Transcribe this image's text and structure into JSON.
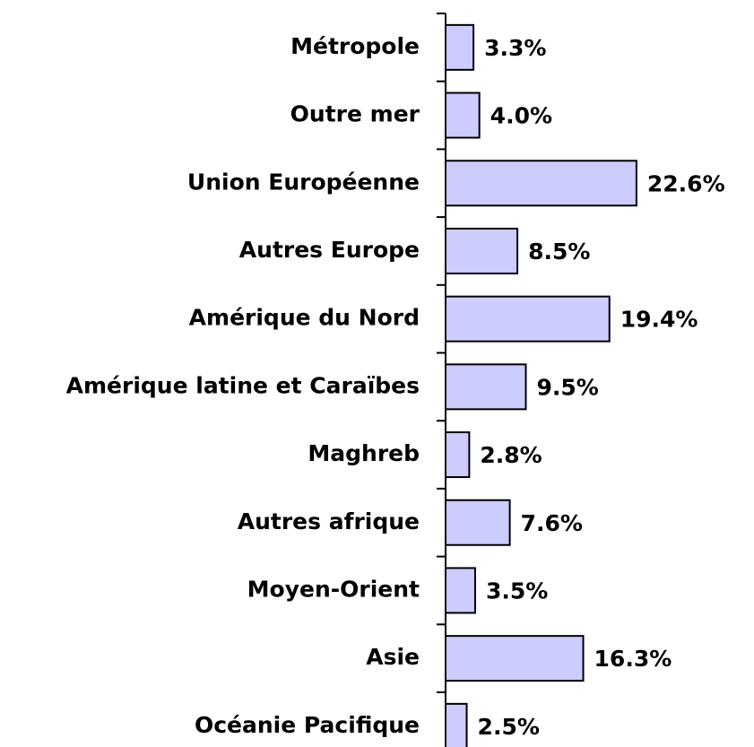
{
  "chart_data": {
    "type": "bar",
    "orientation": "horizontal",
    "categories": [
      "Métropole",
      "Outre mer",
      "Union Européenne",
      "Autres Europe",
      "Amérique du Nord",
      "Amérique latine et Caraïbes",
      "Maghreb",
      "Autres afrique",
      "Moyen-Orient",
      "Asie",
      "Océanie Pacifique"
    ],
    "values": [
      3.3,
      4.0,
      22.6,
      8.5,
      19.4,
      9.5,
      2.8,
      7.6,
      3.5,
      16.3,
      2.5
    ],
    "value_labels": [
      "3.3%",
      "4.0%",
      "22.6%",
      "8.5%",
      "19.4%",
      "9.5%",
      "2.8%",
      "7.6%",
      "3.5%",
      "16.3%",
      "2.5%"
    ],
    "color": "#ccccff"
  }
}
